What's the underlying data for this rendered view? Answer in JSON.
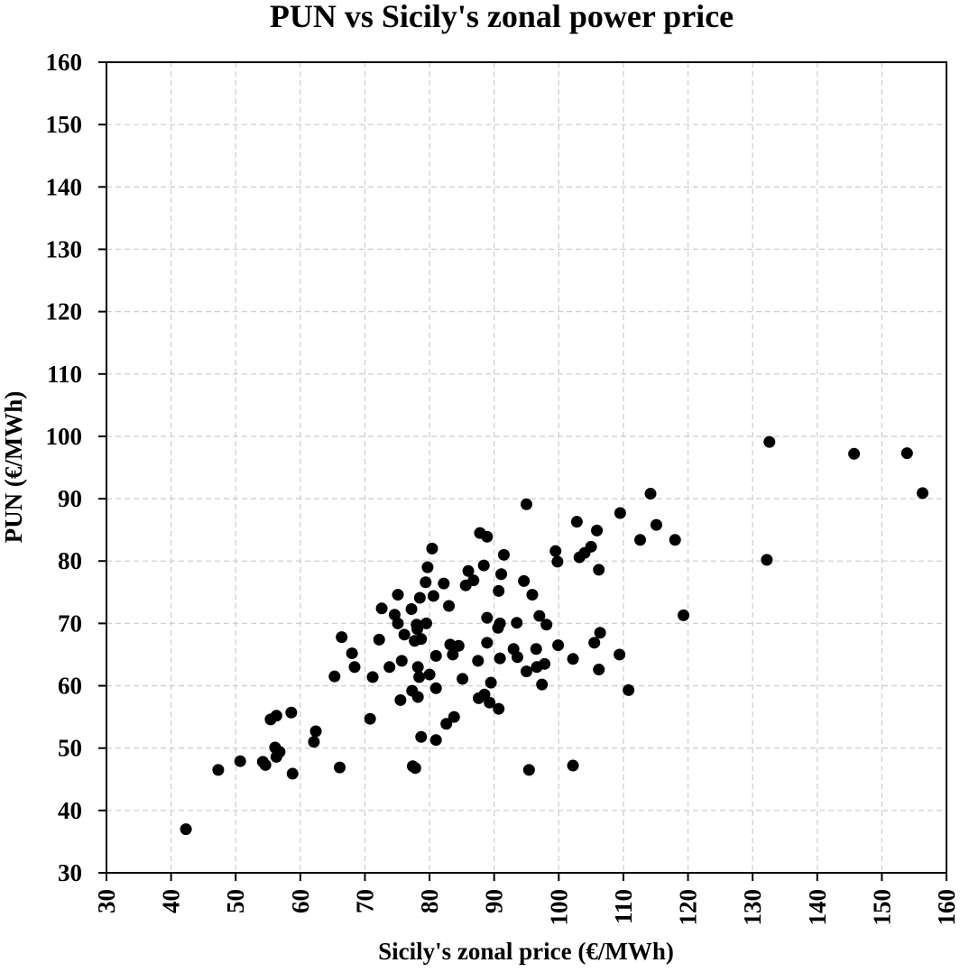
{
  "chart_data": {
    "type": "scatter",
    "title": "PUN vs Sicily's zonal power price",
    "xlabel": "Sicily's zonal price (€/MWh)",
    "ylabel": "PUN (€/MWh)",
    "xlim": [
      30,
      160
    ],
    "ylim": [
      30,
      160
    ],
    "xticks": [
      30,
      40,
      50,
      60,
      70,
      80,
      90,
      100,
      110,
      120,
      130,
      140,
      150,
      160
    ],
    "yticks": [
      30,
      40,
      50,
      60,
      70,
      80,
      90,
      100,
      110,
      120,
      130,
      140,
      150,
      160
    ],
    "grid": true,
    "legend": "none",
    "marker_color": "#000000",
    "series": [
      {
        "name": "PUN vs Sicily",
        "points": [
          [
            42.3,
            37.0
          ],
          [
            47.3,
            46.5
          ],
          [
            50.7,
            47.9
          ],
          [
            54.2,
            47.8
          ],
          [
            54.6,
            47.3
          ],
          [
            55.4,
            54.6
          ],
          [
            56.3,
            55.2
          ],
          [
            58.6,
            55.7
          ],
          [
            56.1,
            50.1
          ],
          [
            56.8,
            49.4
          ],
          [
            56.3,
            48.6
          ],
          [
            62.4,
            52.7
          ],
          [
            62.1,
            51.0
          ],
          [
            58.8,
            45.9
          ],
          [
            66.1,
            46.9
          ],
          [
            66.4,
            67.8
          ],
          [
            68.0,
            65.2
          ],
          [
            68.4,
            63.0
          ],
          [
            65.3,
            61.5
          ],
          [
            71.2,
            61.4
          ],
          [
            72.2,
            67.4
          ],
          [
            73.8,
            63.0
          ],
          [
            75.7,
            64.0
          ],
          [
            75.1,
            70.0
          ],
          [
            76.1,
            68.2
          ],
          [
            74.6,
            71.4
          ],
          [
            78.0,
            69.8
          ],
          [
            79.5,
            70.0
          ],
          [
            78.1,
            69.1
          ],
          [
            77.7,
            67.2
          ],
          [
            78.7,
            67.5
          ],
          [
            78.2,
            63.0
          ],
          [
            78.4,
            61.4
          ],
          [
            80.0,
            61.8
          ],
          [
            77.3,
            59.2
          ],
          [
            78.2,
            58.2
          ],
          [
            75.5,
            57.7
          ],
          [
            70.8,
            54.7
          ],
          [
            78.7,
            51.8
          ],
          [
            81.0,
            51.3
          ],
          [
            77.4,
            47.1
          ],
          [
            77.8,
            46.8
          ],
          [
            81.0,
            59.6
          ],
          [
            81.0,
            64.8
          ],
          [
            83.2,
            66.6
          ],
          [
            84.5,
            66.4
          ],
          [
            83.6,
            65.0
          ],
          [
            85.1,
            61.1
          ],
          [
            82.6,
            53.9
          ],
          [
            83.8,
            55.0
          ],
          [
            80.4,
            82.0
          ],
          [
            79.7,
            79.0
          ],
          [
            79.4,
            76.6
          ],
          [
            82.2,
            76.4
          ],
          [
            75.1,
            74.6
          ],
          [
            78.5,
            74.1
          ],
          [
            80.6,
            74.4
          ],
          [
            72.6,
            72.4
          ],
          [
            77.2,
            72.3
          ],
          [
            83.0,
            72.8
          ],
          [
            86.0,
            78.4
          ],
          [
            86.8,
            76.9
          ],
          [
            85.6,
            76.1
          ],
          [
            88.4,
            79.3
          ],
          [
            87.8,
            84.5
          ],
          [
            88.9,
            83.9
          ],
          [
            91.5,
            81.0
          ],
          [
            91.1,
            77.9
          ],
          [
            90.7,
            75.2
          ],
          [
            88.9,
            70.9
          ],
          [
            90.9,
            70.0
          ],
          [
            90.6,
            69.3
          ],
          [
            93.5,
            70.1
          ],
          [
            88.9,
            66.9
          ],
          [
            87.5,
            64.0
          ],
          [
            89.5,
            60.5
          ],
          [
            87.6,
            58.0
          ],
          [
            88.5,
            58.6
          ],
          [
            89.3,
            57.3
          ],
          [
            90.7,
            56.3
          ],
          [
            90.9,
            64.4
          ],
          [
            93.0,
            65.9
          ],
          [
            93.6,
            64.6
          ],
          [
            96.5,
            65.9
          ],
          [
            99.9,
            66.5
          ],
          [
            102.2,
            64.3
          ],
          [
            95.0,
            62.3
          ],
          [
            96.6,
            63.0
          ],
          [
            97.8,
            63.5
          ],
          [
            97.4,
            60.2
          ],
          [
            95.4,
            46.5
          ],
          [
            102.2,
            47.2
          ],
          [
            95.0,
            89.1
          ],
          [
            94.6,
            76.8
          ],
          [
            95.9,
            74.6
          ],
          [
            99.5,
            81.6
          ],
          [
            99.8,
            79.9
          ],
          [
            102.8,
            86.3
          ],
          [
            105.9,
            84.9
          ],
          [
            103.2,
            80.6
          ],
          [
            104.0,
            81.3
          ],
          [
            105.0,
            82.3
          ],
          [
            106.2,
            78.6
          ],
          [
            109.5,
            87.7
          ],
          [
            112.6,
            83.4
          ],
          [
            114.2,
            90.8
          ],
          [
            115.1,
            85.8
          ],
          [
            118.0,
            83.4
          ],
          [
            119.3,
            71.3
          ],
          [
            97.0,
            71.2
          ],
          [
            98.1,
            69.8
          ],
          [
            106.4,
            68.5
          ],
          [
            105.5,
            66.9
          ],
          [
            109.4,
            65.0
          ],
          [
            106.2,
            62.6
          ],
          [
            110.8,
            59.3
          ],
          [
            132.6,
            99.1
          ],
          [
            145.7,
            97.2
          ],
          [
            153.9,
            97.3
          ],
          [
            156.3,
            90.9
          ],
          [
            132.2,
            80.2
          ]
        ]
      }
    ]
  }
}
